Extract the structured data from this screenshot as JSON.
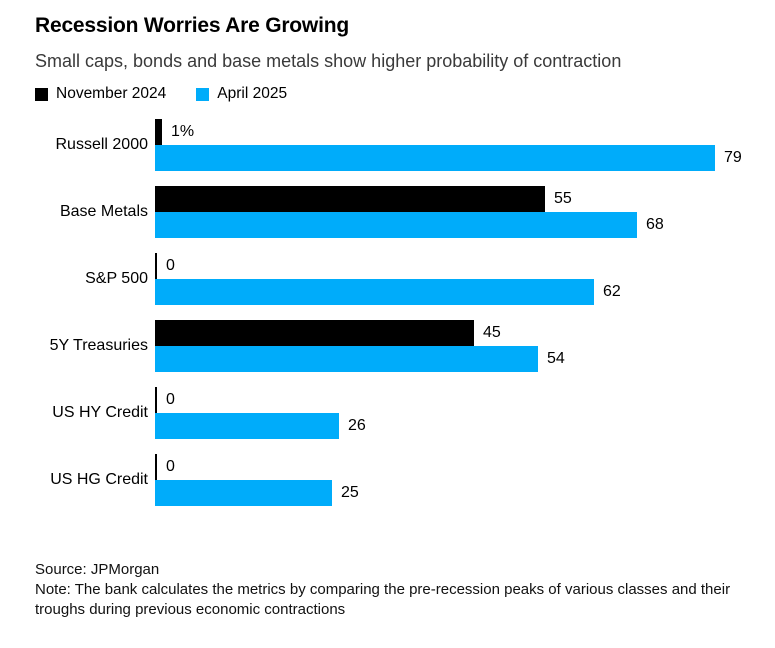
{
  "header": {
    "title": "Recession Worries Are Growing",
    "subtitle": "Small caps, bonds and base metals show higher probability of contraction"
  },
  "legend": [
    {
      "label": "November 2024",
      "color": "#000000"
    },
    {
      "label": "April 2025",
      "color": "#00ACFA"
    }
  ],
  "chart_data": {
    "type": "bar",
    "orientation": "horizontal",
    "title": "Recession Worries Are Growing",
    "subtitle": "Small caps, bonds and base metals show higher probability of contraction",
    "categories": [
      "Russell 2000",
      "Base Metals",
      "S&P 500",
      "5Y Treasuries",
      "US HY Credit",
      "US HG Credit"
    ],
    "series": [
      {
        "name": "November 2024",
        "color": "#000000",
        "values": [
          1,
          55,
          0,
          45,
          0,
          0
        ],
        "labels": [
          "1%",
          "55",
          "0",
          "45",
          "0",
          "0"
        ]
      },
      {
        "name": "April 2025",
        "color": "#00ACFA",
        "values": [
          79,
          68,
          62,
          54,
          26,
          25
        ],
        "labels": [
          "79",
          "68",
          "62",
          "54",
          "26",
          "25"
        ]
      }
    ],
    "xlim": [
      0,
      79
    ],
    "grid": false,
    "legend_position": "top",
    "value_labels": "outside-end"
  },
  "footer": {
    "source": "Source: JPMorgan",
    "note": "Note: The bank calculates the metrics by comparing the pre-recession peaks of various classes and their troughs during previous economic contractions"
  }
}
